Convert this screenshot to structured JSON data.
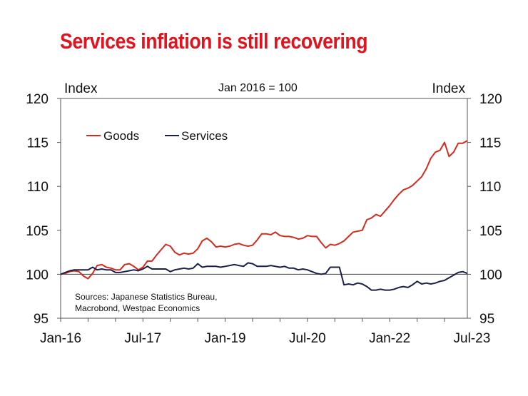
{
  "title": "Services inflation is still recovering",
  "colors": {
    "title": "#e0141e",
    "goods": "#d52b1e",
    "services": "#1c1f4a",
    "axis": "#555555",
    "baseline": "#444444"
  },
  "chart_data": {
    "type": "line",
    "title": "Services inflation is still recovering",
    "subtitle": "Jan 2016 = 100",
    "ylabel_left": "Index",
    "ylabel_right": "Index",
    "xlabel": "",
    "ylim": [
      95,
      120
    ],
    "yticks": [
      95,
      100,
      105,
      110,
      115,
      120
    ],
    "xticks": [
      {
        "label": "Jan-16",
        "index": 0
      },
      {
        "label": "Jul-17",
        "index": 18
      },
      {
        "label": "Jan-19",
        "index": 36
      },
      {
        "label": "Jul-20",
        "index": 54
      },
      {
        "label": "Jan-22",
        "index": 72
      },
      {
        "label": "Jul-23",
        "index": 90
      }
    ],
    "x_start": "2016-01",
    "x_frequency": "monthly",
    "baseline": 100,
    "grid": false,
    "legend": "top-left",
    "source_note": [
      "Sources: Japanese Statistics Bureau,",
      "Macrobond, Westpac Economics"
    ],
    "series": [
      {
        "name": "Goods",
        "values": [
          100.0,
          100.1,
          100.3,
          100.4,
          100.3,
          99.8,
          99.5,
          100.1,
          101.0,
          101.1,
          100.8,
          100.7,
          100.5,
          100.5,
          101.1,
          101.2,
          100.9,
          100.5,
          100.8,
          101.5,
          101.5,
          102.2,
          102.8,
          103.4,
          103.2,
          102.5,
          102.2,
          102.4,
          102.3,
          102.4,
          102.9,
          103.8,
          104.1,
          103.7,
          103.1,
          103.2,
          103.1,
          103.2,
          103.4,
          103.5,
          103.3,
          103.2,
          103.3,
          103.9,
          104.6,
          104.6,
          104.5,
          104.8,
          104.4,
          104.3,
          104.3,
          104.2,
          104.0,
          104.1,
          104.4,
          104.3,
          104.3,
          103.6,
          103.0,
          103.4,
          103.3,
          103.5,
          103.8,
          104.3,
          104.8,
          104.9,
          105.0,
          106.2,
          106.4,
          106.8,
          106.6,
          107.2,
          107.8,
          108.5,
          109.1,
          109.6,
          109.8,
          110.1,
          110.6,
          111.1,
          112.0,
          113.2,
          113.9,
          114.1,
          115.0,
          113.4,
          113.9,
          114.9,
          114.9,
          115.2
        ]
      },
      {
        "name": "Services",
        "values": [
          100.0,
          100.2,
          100.4,
          100.5,
          100.5,
          100.5,
          100.5,
          100.8,
          100.5,
          100.6,
          100.5,
          100.5,
          100.2,
          100.2,
          100.3,
          100.4,
          100.5,
          100.4,
          100.6,
          100.9,
          100.6,
          100.6,
          100.6,
          100.6,
          100.3,
          100.5,
          100.6,
          100.7,
          100.6,
          100.7,
          101.2,
          100.8,
          100.9,
          100.9,
          100.9,
          100.8,
          100.9,
          101.0,
          101.1,
          101.0,
          100.9,
          101.3,
          101.2,
          100.9,
          100.9,
          100.9,
          101.0,
          100.9,
          100.8,
          100.9,
          100.7,
          100.7,
          100.5,
          100.6,
          100.5,
          100.3,
          100.1,
          100.0,
          100.1,
          100.8,
          100.8,
          100.8,
          98.8,
          98.9,
          98.8,
          99.0,
          98.9,
          98.6,
          98.2,
          98.2,
          98.3,
          98.2,
          98.2,
          98.3,
          98.5,
          98.6,
          98.5,
          98.8,
          99.2,
          98.9,
          99.0,
          98.9,
          99.0,
          99.2,
          99.3,
          99.6,
          99.9,
          100.2,
          100.3,
          100.1
        ]
      }
    ]
  }
}
